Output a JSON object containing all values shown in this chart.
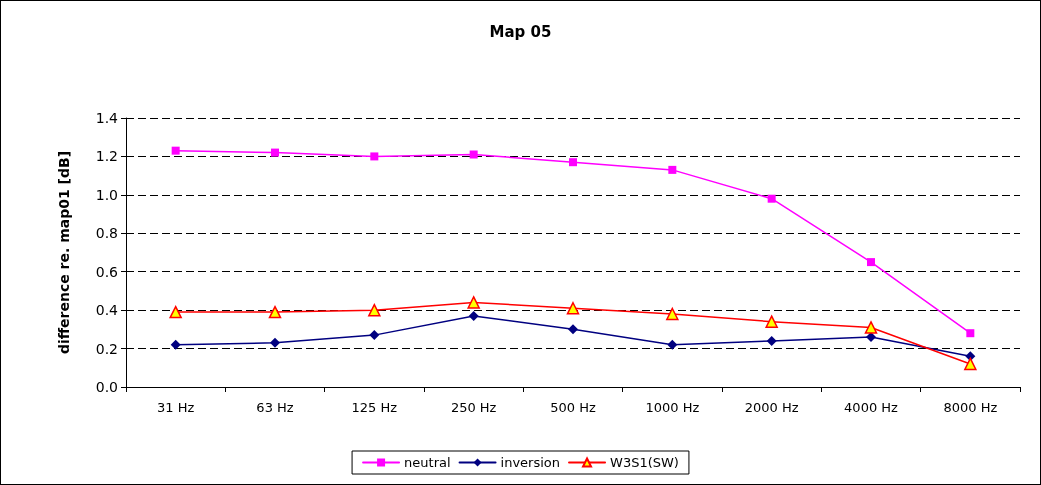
{
  "chart_data": {
    "type": "line",
    "title": "Map 05",
    "ylabel": "difference re. map01 [dB]",
    "categories": [
      "31 Hz",
      "63 Hz",
      "125 Hz",
      "250 Hz",
      "500 Hz",
      "1000 Hz",
      "2000 Hz",
      "4000 Hz",
      "8000 Hz"
    ],
    "series": [
      {
        "name": "neutral",
        "color": "#ff00ff",
        "marker": "square",
        "values": [
          1.23,
          1.22,
          1.2,
          1.21,
          1.17,
          1.13,
          0.98,
          0.65,
          0.28
        ]
      },
      {
        "name": "inversion",
        "color": "#000080",
        "marker": "diamond",
        "values": [
          0.22,
          0.23,
          0.27,
          0.37,
          0.3,
          0.22,
          0.24,
          0.26,
          0.16
        ]
      },
      {
        "name": "W3S1(SW)",
        "color": "#ff0000",
        "marker": "triangle",
        "values": [
          0.39,
          0.39,
          0.4,
          0.44,
          0.41,
          0.38,
          0.34,
          0.31,
          0.12
        ]
      }
    ],
    "ylim": [
      0,
      1.4
    ],
    "yticks": [
      {
        "value": 0,
        "label": "0.0"
      },
      0.2,
      0.4,
      0.6,
      0.8,
      {
        "value": 1,
        "label": "1.0"
      },
      1.2,
      1.4
    ],
    "grid": "y",
    "legend": "bottom",
    "line_style": "solid"
  }
}
